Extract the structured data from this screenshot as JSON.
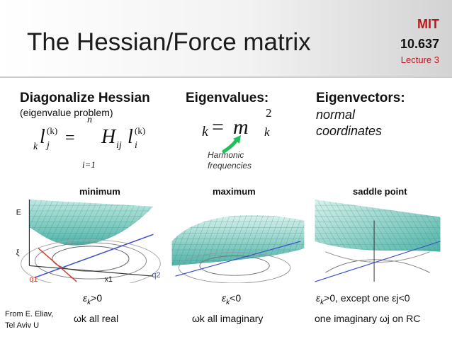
{
  "header": {
    "title": "The Hessian/Force matrix",
    "institution": "MIT",
    "course": "10.637",
    "lecture": "Lecture 3"
  },
  "columns": {
    "diagonalize": {
      "heading": "Diagonalize Hessian",
      "subheading": "(eigenvalue problem)",
      "eq_lhs": "l",
      "eq_k": "k",
      "eq_j": "j",
      "eq_sup": "(k)",
      "eq_equals": "=",
      "eq_sum_top": "n",
      "eq_sum_bottom": "i=1",
      "eq_H": "H",
      "eq_ij": "ij",
      "eq_l2": "l",
      "eq_i": "i",
      "eq_sup2": "(k)"
    },
    "eigenvalues": {
      "heading": "Eigenvalues:",
      "eq_k": "k",
      "eq_equals": "=",
      "eq_m": "m",
      "eq_exp": "2",
      "eq_sub_k": "k",
      "note_line1": "Harmonic",
      "note_line2": "frequencies"
    },
    "eigenvectors": {
      "heading": "Eigenvectors:",
      "line1": "normal",
      "line2": "coordinates"
    }
  },
  "panels": [
    {
      "label": "minimum",
      "cond_eps": "ε",
      "cond_sub": "k",
      "cond_rest": ">0",
      "omega_line": "ωk all real"
    },
    {
      "label": "maximum",
      "cond_eps": "ε",
      "cond_sub": "k",
      "cond_rest": "<0",
      "omega_line": "ωk all imaginary"
    },
    {
      "label": "saddle point",
      "cond_eps": "ε",
      "cond_sub": "k",
      "cond_rest": ">0, except one εj<0",
      "omega_line": "one imaginary ωj on RC"
    }
  ],
  "axes": {
    "e": "E",
    "q1": "q1",
    "q2": "q2",
    "x1": "x1",
    "xi": "ξ"
  },
  "credit": {
    "line1": "From E. Eliav,",
    "line2": "Tel Aviv U"
  },
  "colors": {
    "accent": "#c0141c",
    "surface": "#4fb3a8",
    "surface_light": "#bfe9e1",
    "arrow": "#1fbf5a",
    "axis_red": "#d23a2a",
    "axis_blue": "#3a4fd0"
  }
}
